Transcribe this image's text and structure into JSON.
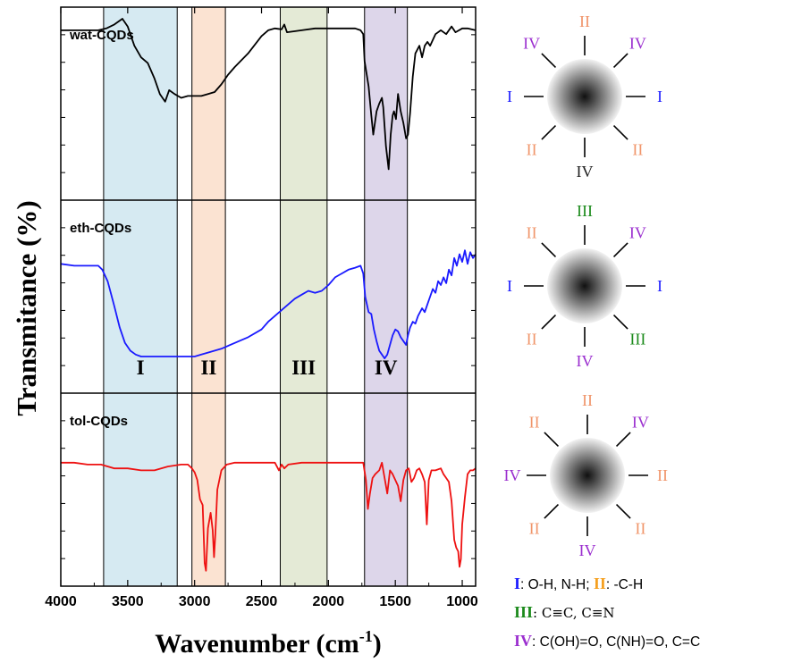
{
  "colors": {
    "I": "#1a1aff",
    "II": "#f0956a",
    "III": "#1b8a1b",
    "IV": "#9b2fcf",
    "IV_plain": "#222222",
    "band_I": "#d6eaf2",
    "band_II": "#fbe3d2",
    "band_III": "#e4ead6",
    "band_IV": "#ddd6ea"
  },
  "chart_data": {
    "type": "line",
    "title": "",
    "xlabel": "Wavenumber (cm",
    "xlabel_sup": "-1",
    "xlabel_close": ")",
    "ylabel": "Transmitance (%)",
    "xlim": [
      4000,
      900
    ],
    "x_ticks": [
      4000,
      3500,
      3000,
      2500,
      2000,
      1500,
      1000
    ],
    "x_tick_labels": [
      "4000",
      "3500",
      "3000",
      "2500",
      "2000",
      "1500",
      "1000"
    ],
    "bands": [
      {
        "label": "I",
        "from": 3680,
        "to": 3130,
        "color_key": "band_I"
      },
      {
        "label": "II",
        "from": 3020,
        "to": 2770,
        "color_key": "band_II"
      },
      {
        "label": "III",
        "from": 2360,
        "to": 2010,
        "color_key": "band_III"
      },
      {
        "label": "IV",
        "from": 1730,
        "to": 1410,
        "color_key": "band_IV"
      }
    ],
    "panels": [
      {
        "name": "wat-CQDs",
        "color": "#000000",
        "points": [
          [
            4000,
            0.12
          ],
          [
            3900,
            0.12
          ],
          [
            3800,
            0.12
          ],
          [
            3720,
            0.12
          ],
          [
            3660,
            0.11
          ],
          [
            3600,
            0.09
          ],
          [
            3540,
            0.06
          ],
          [
            3500,
            0.1
          ],
          [
            3450,
            0.2
          ],
          [
            3400,
            0.26
          ],
          [
            3350,
            0.29
          ],
          [
            3300,
            0.37
          ],
          [
            3260,
            0.45
          ],
          [
            3220,
            0.49
          ],
          [
            3190,
            0.43
          ],
          [
            3150,
            0.45
          ],
          [
            3100,
            0.47
          ],
          [
            3050,
            0.46
          ],
          [
            3000,
            0.46
          ],
          [
            2950,
            0.46
          ],
          [
            2900,
            0.45
          ],
          [
            2850,
            0.44
          ],
          [
            2800,
            0.4
          ],
          [
            2750,
            0.35
          ],
          [
            2700,
            0.31
          ],
          [
            2600,
            0.24
          ],
          [
            2500,
            0.15
          ],
          [
            2450,
            0.12
          ],
          [
            2400,
            0.11
          ],
          [
            2350,
            0.115
          ],
          [
            2330,
            0.09
          ],
          [
            2310,
            0.13
          ],
          [
            2200,
            0.12
          ],
          [
            2100,
            0.11
          ],
          [
            2000,
            0.11
          ],
          [
            1900,
            0.11
          ],
          [
            1800,
            0.11
          ],
          [
            1760,
            0.12
          ],
          [
            1740,
            0.14
          ],
          [
            1730,
            0.28
          ],
          [
            1700,
            0.41
          ],
          [
            1680,
            0.56
          ],
          [
            1665,
            0.66
          ],
          [
            1640,
            0.54
          ],
          [
            1620,
            0.5
          ],
          [
            1600,
            0.47
          ],
          [
            1590,
            0.52
          ],
          [
            1570,
            0.72
          ],
          [
            1550,
            0.84
          ],
          [
            1535,
            0.66
          ],
          [
            1520,
            0.56
          ],
          [
            1510,
            0.54
          ],
          [
            1495,
            0.58
          ],
          [
            1480,
            0.45
          ],
          [
            1460,
            0.54
          ],
          [
            1440,
            0.6
          ],
          [
            1420,
            0.68
          ],
          [
            1405,
            0.66
          ],
          [
            1390,
            0.55
          ],
          [
            1370,
            0.36
          ],
          [
            1350,
            0.24
          ],
          [
            1320,
            0.2
          ],
          [
            1300,
            0.26
          ],
          [
            1280,
            0.2
          ],
          [
            1260,
            0.18
          ],
          [
            1240,
            0.2
          ],
          [
            1200,
            0.14
          ],
          [
            1160,
            0.12
          ],
          [
            1120,
            0.14
          ],
          [
            1080,
            0.1
          ],
          [
            1050,
            0.13
          ],
          [
            1000,
            0.11
          ],
          [
            960,
            0.11
          ],
          [
            900,
            0.12
          ]
        ]
      },
      {
        "name": "eth-CQDs",
        "color": "#1a1aff",
        "points": [
          [
            4000,
            0.33
          ],
          [
            3900,
            0.34
          ],
          [
            3800,
            0.34
          ],
          [
            3720,
            0.34
          ],
          [
            3690,
            0.36
          ],
          [
            3650,
            0.42
          ],
          [
            3600,
            0.55
          ],
          [
            3560,
            0.66
          ],
          [
            3520,
            0.74
          ],
          [
            3480,
            0.78
          ],
          [
            3440,
            0.8
          ],
          [
            3400,
            0.81
          ],
          [
            3350,
            0.81
          ],
          [
            3300,
            0.81
          ],
          [
            3200,
            0.81
          ],
          [
            3100,
            0.81
          ],
          [
            3000,
            0.81
          ],
          [
            2950,
            0.8
          ],
          [
            2900,
            0.79
          ],
          [
            2800,
            0.77
          ],
          [
            2700,
            0.74
          ],
          [
            2600,
            0.71
          ],
          [
            2500,
            0.67
          ],
          [
            2450,
            0.63
          ],
          [
            2400,
            0.6
          ],
          [
            2350,
            0.57
          ],
          [
            2300,
            0.54
          ],
          [
            2250,
            0.51
          ],
          [
            2200,
            0.49
          ],
          [
            2150,
            0.47
          ],
          [
            2100,
            0.48
          ],
          [
            2050,
            0.47
          ],
          [
            2000,
            0.44
          ],
          [
            1950,
            0.4
          ],
          [
            1900,
            0.38
          ],
          [
            1850,
            0.36
          ],
          [
            1800,
            0.35
          ],
          [
            1760,
            0.34
          ],
          [
            1740,
            0.38
          ],
          [
            1725,
            0.5
          ],
          [
            1700,
            0.58
          ],
          [
            1680,
            0.59
          ],
          [
            1660,
            0.67
          ],
          [
            1640,
            0.73
          ],
          [
            1620,
            0.78
          ],
          [
            1600,
            0.8
          ],
          [
            1580,
            0.82
          ],
          [
            1560,
            0.8
          ],
          [
            1540,
            0.75
          ],
          [
            1520,
            0.7
          ],
          [
            1500,
            0.67
          ],
          [
            1480,
            0.68
          ],
          [
            1460,
            0.71
          ],
          [
            1440,
            0.73
          ],
          [
            1420,
            0.75
          ],
          [
            1405,
            0.7
          ],
          [
            1390,
            0.66
          ],
          [
            1370,
            0.63
          ],
          [
            1350,
            0.64
          ],
          [
            1330,
            0.6
          ],
          [
            1300,
            0.56
          ],
          [
            1280,
            0.58
          ],
          [
            1260,
            0.54
          ],
          [
            1240,
            0.5
          ],
          [
            1220,
            0.46
          ],
          [
            1200,
            0.48
          ],
          [
            1180,
            0.42
          ],
          [
            1160,
            0.44
          ],
          [
            1140,
            0.4
          ],
          [
            1120,
            0.43
          ],
          [
            1100,
            0.36
          ],
          [
            1080,
            0.39
          ],
          [
            1060,
            0.3
          ],
          [
            1040,
            0.34
          ],
          [
            1020,
            0.28
          ],
          [
            1000,
            0.32
          ],
          [
            980,
            0.26
          ],
          [
            960,
            0.33
          ],
          [
            940,
            0.27
          ],
          [
            920,
            0.3
          ],
          [
            900,
            0.28
          ]
        ]
      },
      {
        "name": "tol-CQDs",
        "color": "#ee1111",
        "points": [
          [
            4000,
            0.36
          ],
          [
            3900,
            0.36
          ],
          [
            3800,
            0.37
          ],
          [
            3700,
            0.37
          ],
          [
            3600,
            0.39
          ],
          [
            3500,
            0.39
          ],
          [
            3400,
            0.4
          ],
          [
            3300,
            0.4
          ],
          [
            3200,
            0.38
          ],
          [
            3100,
            0.37
          ],
          [
            3050,
            0.37
          ],
          [
            3020,
            0.39
          ],
          [
            3000,
            0.41
          ],
          [
            2980,
            0.45
          ],
          [
            2960,
            0.55
          ],
          [
            2940,
            0.58
          ],
          [
            2925,
            0.88
          ],
          [
            2915,
            0.92
          ],
          [
            2900,
            0.7
          ],
          [
            2880,
            0.62
          ],
          [
            2865,
            0.71
          ],
          [
            2855,
            0.85
          ],
          [
            2845,
            0.73
          ],
          [
            2830,
            0.5
          ],
          [
            2800,
            0.4
          ],
          [
            2760,
            0.37
          ],
          [
            2700,
            0.36
          ],
          [
            2600,
            0.36
          ],
          [
            2500,
            0.36
          ],
          [
            2400,
            0.36
          ],
          [
            2370,
            0.4
          ],
          [
            2350,
            0.37
          ],
          [
            2330,
            0.39
          ],
          [
            2300,
            0.37
          ],
          [
            2200,
            0.36
          ],
          [
            2100,
            0.36
          ],
          [
            2000,
            0.36
          ],
          [
            1900,
            0.36
          ],
          [
            1800,
            0.36
          ],
          [
            1740,
            0.36
          ],
          [
            1720,
            0.45
          ],
          [
            1705,
            0.6
          ],
          [
            1690,
            0.52
          ],
          [
            1670,
            0.44
          ],
          [
            1650,
            0.42
          ],
          [
            1620,
            0.4
          ],
          [
            1600,
            0.36
          ],
          [
            1580,
            0.44
          ],
          [
            1560,
            0.52
          ],
          [
            1540,
            0.4
          ],
          [
            1520,
            0.42
          ],
          [
            1500,
            0.45
          ],
          [
            1480,
            0.48
          ],
          [
            1460,
            0.56
          ],
          [
            1440,
            0.45
          ],
          [
            1420,
            0.4
          ],
          [
            1400,
            0.39
          ],
          [
            1380,
            0.46
          ],
          [
            1360,
            0.44
          ],
          [
            1340,
            0.4
          ],
          [
            1320,
            0.39
          ],
          [
            1300,
            0.42
          ],
          [
            1280,
            0.46
          ],
          [
            1265,
            0.68
          ],
          [
            1250,
            0.45
          ],
          [
            1230,
            0.4
          ],
          [
            1200,
            0.4
          ],
          [
            1160,
            0.39
          ],
          [
            1140,
            0.42
          ],
          [
            1120,
            0.44
          ],
          [
            1100,
            0.46
          ],
          [
            1080,
            0.56
          ],
          [
            1060,
            0.76
          ],
          [
            1045,
            0.8
          ],
          [
            1030,
            0.82
          ],
          [
            1020,
            0.9
          ],
          [
            1010,
            0.86
          ],
          [
            1000,
            0.68
          ],
          [
            980,
            0.54
          ],
          [
            960,
            0.42
          ],
          [
            940,
            0.4
          ],
          [
            920,
            0.4
          ],
          [
            900,
            0.39
          ]
        ]
      }
    ]
  },
  "band_labels": [
    "I",
    "II",
    "III",
    "IV"
  ],
  "rays": [
    {
      "labels": [
        {
          "pos": "top",
          "text": "II",
          "color_key": "II"
        },
        {
          "pos": "top-right",
          "text": "IV",
          "color_key": "IV"
        },
        {
          "pos": "right",
          "text": "I",
          "color_key": "I"
        },
        {
          "pos": "bottom-right",
          "text": "II",
          "color_key": "II"
        },
        {
          "pos": "bottom",
          "text": "IV",
          "color_key": "IV_plain"
        },
        {
          "pos": "bottom-left",
          "text": "II",
          "color_key": "II"
        },
        {
          "pos": "left",
          "text": "I",
          "color_key": "I"
        },
        {
          "pos": "top-left",
          "text": "IV",
          "color_key": "IV"
        }
      ]
    },
    {
      "labels": [
        {
          "pos": "top",
          "text": "III",
          "color_key": "III"
        },
        {
          "pos": "top-right",
          "text": "IV",
          "color_key": "IV"
        },
        {
          "pos": "right",
          "text": "I",
          "color_key": "I"
        },
        {
          "pos": "bottom-right",
          "text": "III",
          "color_key": "III"
        },
        {
          "pos": "bottom",
          "text": "IV",
          "color_key": "IV"
        },
        {
          "pos": "bottom-left",
          "text": "II",
          "color_key": "II"
        },
        {
          "pos": "left",
          "text": "I",
          "color_key": "I"
        },
        {
          "pos": "top-left",
          "text": "II",
          "color_key": "II"
        }
      ]
    },
    {
      "labels": [
        {
          "pos": "top",
          "text": "II",
          "color_key": "II"
        },
        {
          "pos": "top-right",
          "text": "IV",
          "color_key": "IV"
        },
        {
          "pos": "right",
          "text": "II",
          "color_key": "II"
        },
        {
          "pos": "bottom-right",
          "text": "II",
          "color_key": "II"
        },
        {
          "pos": "bottom",
          "text": "IV",
          "color_key": "IV"
        },
        {
          "pos": "bottom-left",
          "text": "II",
          "color_key": "II"
        },
        {
          "pos": "left",
          "text": "IV",
          "color_key": "IV"
        },
        {
          "pos": "top-left",
          "text": "II",
          "color_key": "II"
        }
      ]
    }
  ],
  "legend": {
    "line1": {
      "r1": "I",
      "t1": ": O-H, N-H; ",
      "r2": "II",
      "t2": ": -C-H"
    },
    "line2": {
      "r1": "III",
      "t1": ": C≡C, C≡N"
    },
    "line3": {
      "r1": "IV",
      "t1": ": C(OH)=O, C(NH)=O, C=C"
    }
  }
}
